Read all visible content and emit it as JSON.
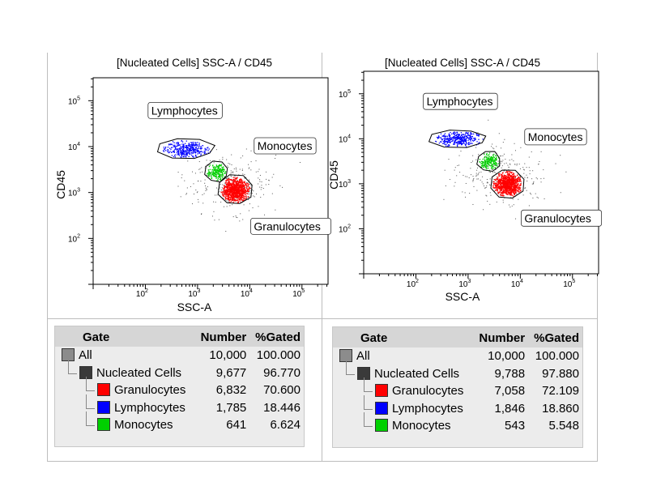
{
  "colors": {
    "granulocytes": "#ff0000",
    "lymphocytes": "#0000ff",
    "monocytes": "#00d000",
    "all_swatch": "#8c8c8c",
    "nucleated_swatch": "#3a3a3a",
    "debris": "#555555",
    "table_bg": "#ececec",
    "table_header": "#d6d6d6"
  },
  "chart_data": [
    {
      "type": "scatter",
      "title": "[Nucleated Cells] SSC-A / CD45",
      "xlabel": "SSC-A",
      "ylabel": "CD45",
      "x_scale": "log",
      "y_scale": "log",
      "xlim": [
        10,
        316228
      ],
      "ylim": [
        10,
        316228
      ],
      "x_ticks": [
        {
          "base": "10",
          "exp": "2"
        },
        {
          "base": "10",
          "exp": "3"
        },
        {
          "base": "10",
          "exp": "4"
        },
        {
          "base": "10",
          "exp": "5"
        }
      ],
      "y_ticks": [
        {
          "base": "10",
          "exp": "2"
        },
        {
          "base": "10",
          "exp": "3"
        },
        {
          "base": "10",
          "exp": "4"
        },
        {
          "base": "10",
          "exp": "5"
        }
      ],
      "populations": [
        {
          "name": "Lymphocytes",
          "label": "Lymphocytes",
          "color_key": "lymphocytes",
          "center": [
            600,
            9000
          ],
          "spread": [
            0.22,
            0.09
          ],
          "count": 1785,
          "label_anchor": [
            130,
            50000
          ]
        },
        {
          "name": "Monocytes",
          "label": "Monocytes",
          "color_key": "monocytes",
          "center": [
            2300,
            2900
          ],
          "spread": [
            0.09,
            0.09
          ],
          "count": 641,
          "label_anchor": [
            14000,
            8500
          ]
        },
        {
          "name": "Granulocytes",
          "label": "Granulocytes",
          "color_key": "granulocytes",
          "center": [
            5200,
            1150
          ],
          "spread": [
            0.13,
            0.13
          ],
          "count": 6832,
          "label_anchor": [
            12000,
            150
          ]
        }
      ]
    },
    {
      "type": "scatter",
      "title": "[Nucleated Cells] SSC-A / CD45",
      "xlabel": "SSC-A",
      "ylabel": "CD45",
      "x_scale": "log",
      "y_scale": "log",
      "xlim": [
        10,
        316228
      ],
      "ylim": [
        10,
        316228
      ],
      "x_ticks": [
        {
          "base": "10",
          "exp": "2"
        },
        {
          "base": "10",
          "exp": "3"
        },
        {
          "base": "10",
          "exp": "4"
        },
        {
          "base": "10",
          "exp": "5"
        }
      ],
      "y_ticks": [
        {
          "base": "10",
          "exp": "2"
        },
        {
          "base": "10",
          "exp": "3"
        },
        {
          "base": "10",
          "exp": "4"
        },
        {
          "base": "10",
          "exp": "5"
        }
      ],
      "populations": [
        {
          "name": "Lymphocytes",
          "label": "Lymphocytes",
          "color_key": "lymphocytes",
          "center": [
            650,
            10000
          ],
          "spread": [
            0.22,
            0.08
          ],
          "count": 1846,
          "label_anchor": [
            160,
            55000
          ]
        },
        {
          "name": "Monocytes",
          "label": "Monocytes",
          "color_key": "monocytes",
          "center": [
            2500,
            3200
          ],
          "spread": [
            0.09,
            0.09
          ],
          "count": 543,
          "label_anchor": [
            14000,
            9000
          ]
        },
        {
          "name": "Granulocytes",
          "label": "Granulocytes",
          "color_key": "granulocytes",
          "center": [
            5600,
            1000
          ],
          "spread": [
            0.13,
            0.13
          ],
          "count": 7058,
          "label_anchor": [
            12000,
            140
          ]
        }
      ]
    }
  ],
  "tables": [
    {
      "headers": {
        "gate": "Gate",
        "number": "Number",
        "pct": "%Gated"
      },
      "rows": [
        {
          "name": "All",
          "number": "10,000",
          "pct": "100.000",
          "swatch": "all_swatch",
          "level": 0
        },
        {
          "name": "Nucleated Cells",
          "number": "9,677",
          "pct": "96.770",
          "swatch": "nucleated_swatch",
          "level": 1
        },
        {
          "name": "Granulocytes",
          "number": "6,832",
          "pct": "70.600",
          "swatch": "granulocytes",
          "level": 2
        },
        {
          "name": "Lymphocytes",
          "number": "1,785",
          "pct": "18.446",
          "swatch": "lymphocytes",
          "level": 2
        },
        {
          "name": "Monocytes",
          "number": "641",
          "pct": "6.624",
          "swatch": "monocytes",
          "level": 2
        }
      ]
    },
    {
      "headers": {
        "gate": "Gate",
        "number": "Number",
        "pct": "%Gated"
      },
      "rows": [
        {
          "name": "All",
          "number": "10,000",
          "pct": "100.000",
          "swatch": "all_swatch",
          "level": 0
        },
        {
          "name": "Nucleated Cells",
          "number": "9,788",
          "pct": "97.880",
          "swatch": "nucleated_swatch",
          "level": 1
        },
        {
          "name": "Granulocytes",
          "number": "7,058",
          "pct": "72.109",
          "swatch": "granulocytes",
          "level": 2
        },
        {
          "name": "Lymphocytes",
          "number": "1,846",
          "pct": "18.860",
          "swatch": "lymphocytes",
          "level": 2
        },
        {
          "name": "Monocytes",
          "number": "543",
          "pct": "5.548",
          "swatch": "monocytes",
          "level": 2
        }
      ]
    }
  ]
}
